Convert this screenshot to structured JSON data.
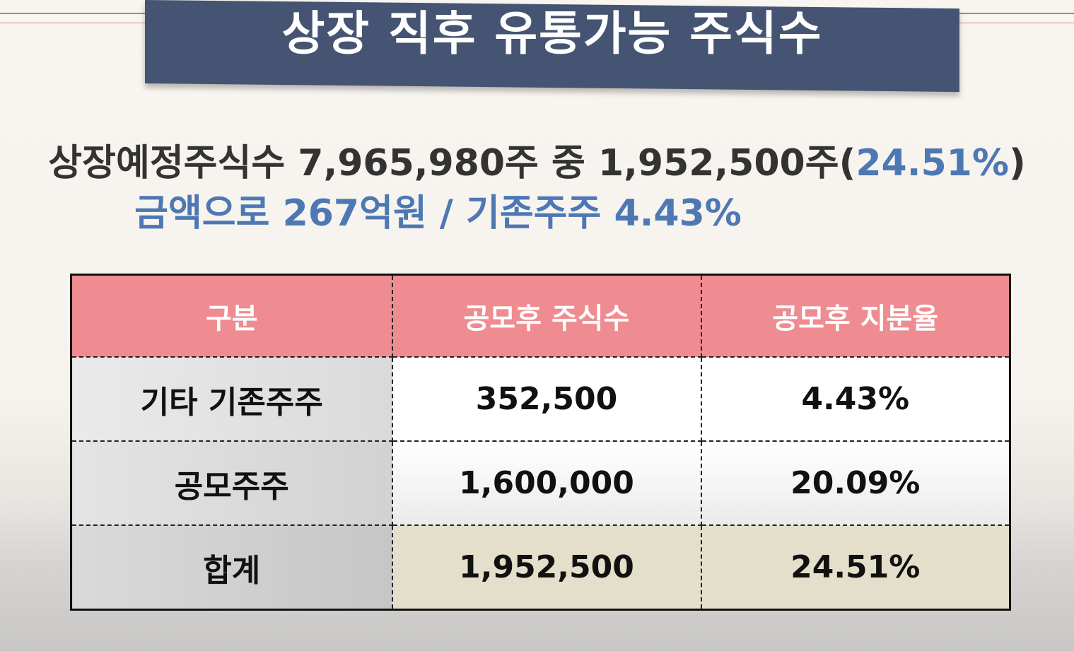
{
  "banner": {
    "title": "상장 직후 유통가능 주식수"
  },
  "summary": {
    "line1_text": "상장예정주식수 7,965,980주 중 1,952,500주(",
    "line1_highlight": "24.51%",
    "line1_close": ")",
    "line2_text": "금액으로 267억원  / 기존주주 4.43%"
  },
  "table": {
    "headers": [
      "구분",
      "공모후 주식수",
      "공모후 지분율"
    ],
    "rows": [
      [
        "기타 기존주주",
        "352,500",
        "4.43%"
      ],
      [
        "공모주주",
        "1,600,000",
        "20.09%"
      ],
      [
        "합계",
        "1,952,500",
        "24.51%"
      ]
    ]
  },
  "colors": {
    "banner": "#455472",
    "header_row": "#ee8c91",
    "highlight_blue": "#4d78b3",
    "total_row": "#e4dfca",
    "deco_line": "#c7757c"
  }
}
